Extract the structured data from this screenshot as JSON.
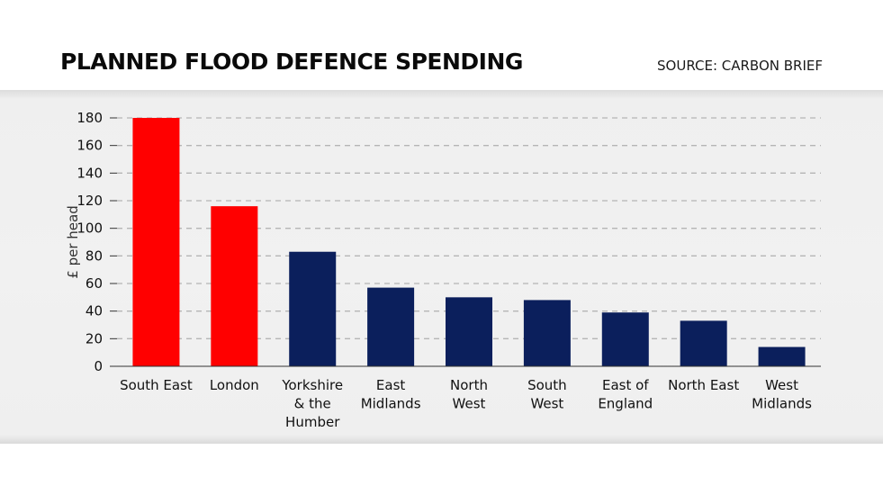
{
  "header": {
    "title": "PLANNED FLOOD DEFENCE SPENDING",
    "source": "SOURCE: CARBON BRIEF"
  },
  "colors": {
    "highlight": "#ff0000",
    "base": "#0b1f5c",
    "grid": "#b5b5b5"
  },
  "chart_data": {
    "type": "bar",
    "title": "PLANNED FLOOD DEFENCE SPENDING",
    "xlabel": "",
    "ylabel": "£ per head",
    "ylim": [
      0,
      180
    ],
    "yticks": [
      0,
      20,
      40,
      60,
      80,
      100,
      120,
      140,
      160,
      180
    ],
    "grid": true,
    "categories": [
      [
        "South East"
      ],
      [
        "London"
      ],
      [
        "Yorkshire",
        "& the",
        "Humber"
      ],
      [
        "East",
        "Midlands"
      ],
      [
        "North",
        "West"
      ],
      [
        "South",
        "West"
      ],
      [
        "East of",
        "England"
      ],
      [
        "North East"
      ],
      [
        "West",
        "Midlands"
      ]
    ],
    "values": [
      180,
      116,
      83,
      57,
      50,
      48,
      39,
      33,
      14
    ],
    "highlighted": [
      true,
      true,
      false,
      false,
      false,
      false,
      false,
      false,
      false
    ]
  }
}
